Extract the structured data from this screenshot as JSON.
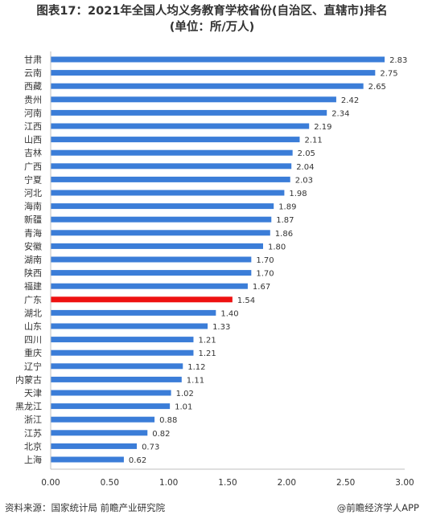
{
  "title_line1": "图表17：2021年全国人均义务教育学校省份(自治区、直辖市)排名",
  "title_line2": "(单位：所/万人)",
  "source": "资料来源：国家统计局 前瞻产业研究院",
  "brand": "@前瞻经济学人APP",
  "colors": {
    "bar": "#3b7dd8",
    "highlight": "#ee1111",
    "axis": "#bfbfbf",
    "text": "#333333"
  },
  "chart_data": {
    "type": "bar",
    "orientation": "horizontal",
    "categories": [
      "甘肃",
      "云南",
      "西藏",
      "贵州",
      "河南",
      "江西",
      "山西",
      "吉林",
      "广西",
      "宁夏",
      "河北",
      "海南",
      "新疆",
      "青海",
      "安徽",
      "湖南",
      "陕西",
      "福建",
      "广东",
      "湖北",
      "山东",
      "四川",
      "重庆",
      "辽宁",
      "内蒙古",
      "天津",
      "黑龙江",
      "浙江",
      "江苏",
      "北京",
      "上海"
    ],
    "values": [
      2.83,
      2.75,
      2.65,
      2.42,
      2.34,
      2.19,
      2.11,
      2.05,
      2.04,
      2.03,
      1.98,
      1.89,
      1.87,
      1.86,
      1.8,
      1.7,
      1.7,
      1.67,
      1.54,
      1.4,
      1.33,
      1.21,
      1.21,
      1.12,
      1.11,
      1.02,
      1.01,
      0.88,
      0.82,
      0.73,
      0.62
    ],
    "value_labels": [
      "2.83",
      "2.75",
      "2.65",
      "2.42",
      "2.34",
      "2.19",
      "2.11",
      "2.05",
      "2.04",
      "2.03",
      "1.98",
      "1.89",
      "1.87",
      "1.86",
      "1.80",
      "1.70",
      "1.70",
      "1.67",
      "1.54",
      "1.40",
      "1.33",
      "1.21",
      "1.21",
      "1.12",
      "1.11",
      "1.02",
      "1.01",
      "0.88",
      "0.82",
      "0.73",
      "0.62"
    ],
    "highlight": "广东",
    "xlim": [
      0,
      3.0
    ],
    "xticks": [
      "0.00",
      "0.50",
      "1.00",
      "1.50",
      "2.00",
      "2.50",
      "3.00"
    ],
    "grid": false,
    "legend": "none"
  }
}
